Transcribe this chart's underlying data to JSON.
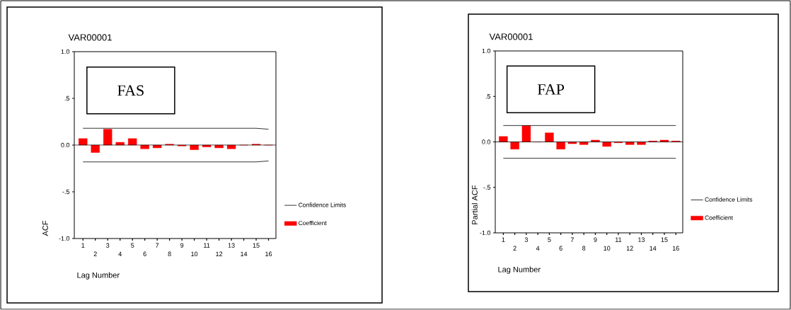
{
  "chart_data": [
    {
      "type": "bar",
      "title": "VAR00001",
      "xlabel": "Lag Number",
      "ylabel": "ACF",
      "annotations": [
        "FAS"
      ],
      "legend": "right",
      "categories": [
        "1",
        "2",
        "3",
        "4",
        "5",
        "6",
        "7",
        "8",
        "9",
        "10",
        "11",
        "12",
        "13",
        "14",
        "15",
        "16"
      ],
      "series": [
        {
          "name": "Confidence Limits",
          "type": "line",
          "color": "#000000",
          "values": [
            0.18,
            0.18,
            0.18,
            0.18,
            0.18,
            0.18,
            0.18,
            0.18,
            0.18,
            0.18,
            0.18,
            0.18,
            0.18,
            0.18,
            0.18,
            0.17
          ]
        },
        {
          "type": "line",
          "color": "#000000",
          "values": [
            -0.18,
            -0.18,
            -0.18,
            -0.18,
            -0.18,
            -0.18,
            -0.18,
            -0.18,
            -0.18,
            -0.18,
            -0.18,
            -0.18,
            -0.18,
            -0.18,
            -0.18,
            -0.17
          ]
        },
        {
          "name": "Coefficient",
          "color": "#ff0000",
          "values": [
            0.07,
            -0.08,
            0.17,
            0.03,
            0.07,
            -0.04,
            -0.03,
            0.01,
            -0.01,
            -0.05,
            -0.02,
            -0.03,
            -0.04,
            0.0,
            0.01,
            0.0
          ]
        }
      ],
      "ylim": [
        -1,
        1
      ],
      "yticks": [
        {
          "value": -1,
          "label": "-1.0"
        },
        {
          "value": -0.5,
          "label": "-.5"
        },
        {
          "value": 0,
          "label": "0.0"
        },
        {
          "value": 0.5,
          "label": ".5"
        },
        {
          "value": 1,
          "label": "1.0"
        }
      ],
      "ref_lines": [
        {
          "axis": "y",
          "value": 0
        }
      ]
    },
    {
      "type": "bar",
      "title": "VAR00001",
      "xlabel": "Lag Number",
      "ylabel": "Partial ACF",
      "annotations": [
        "FAP"
      ],
      "legend": "right",
      "categories": [
        "1",
        "2",
        "3",
        "4",
        "5",
        "6",
        "7",
        "8",
        "9",
        "10",
        "11",
        "12",
        "13",
        "14",
        "15",
        "16"
      ],
      "series": [
        {
          "name": "Confidence Limits",
          "type": "line",
          "color": "#000000",
          "values": [
            0.18,
            0.18,
            0.18,
            0.18,
            0.18,
            0.18,
            0.18,
            0.18,
            0.18,
            0.18,
            0.18,
            0.18,
            0.18,
            0.18,
            0.18,
            0.18
          ]
        },
        {
          "type": "line",
          "color": "#000000",
          "values": [
            -0.18,
            -0.18,
            -0.18,
            -0.18,
            -0.18,
            -0.18,
            -0.18,
            -0.18,
            -0.18,
            -0.18,
            -0.18,
            -0.18,
            -0.18,
            -0.18,
            -0.18,
            -0.18
          ]
        },
        {
          "name": "Coefficient",
          "color": "#ff0000",
          "values": [
            0.06,
            -0.08,
            0.18,
            0.0,
            0.1,
            -0.08,
            -0.02,
            -0.03,
            0.02,
            -0.05,
            -0.01,
            -0.03,
            -0.03,
            0.01,
            0.02,
            0.01
          ]
        }
      ],
      "ylim": [
        -1,
        1
      ],
      "yticks": [
        {
          "value": -1,
          "label": "-1.0"
        },
        {
          "value": -0.5,
          "label": "-.5"
        },
        {
          "value": 0,
          "label": "0.0"
        },
        {
          "value": 0.5,
          "label": ".5"
        },
        {
          "value": 1,
          "label": "1.0"
        }
      ],
      "ref_lines": [
        {
          "axis": "y",
          "value": 0
        }
      ]
    }
  ]
}
